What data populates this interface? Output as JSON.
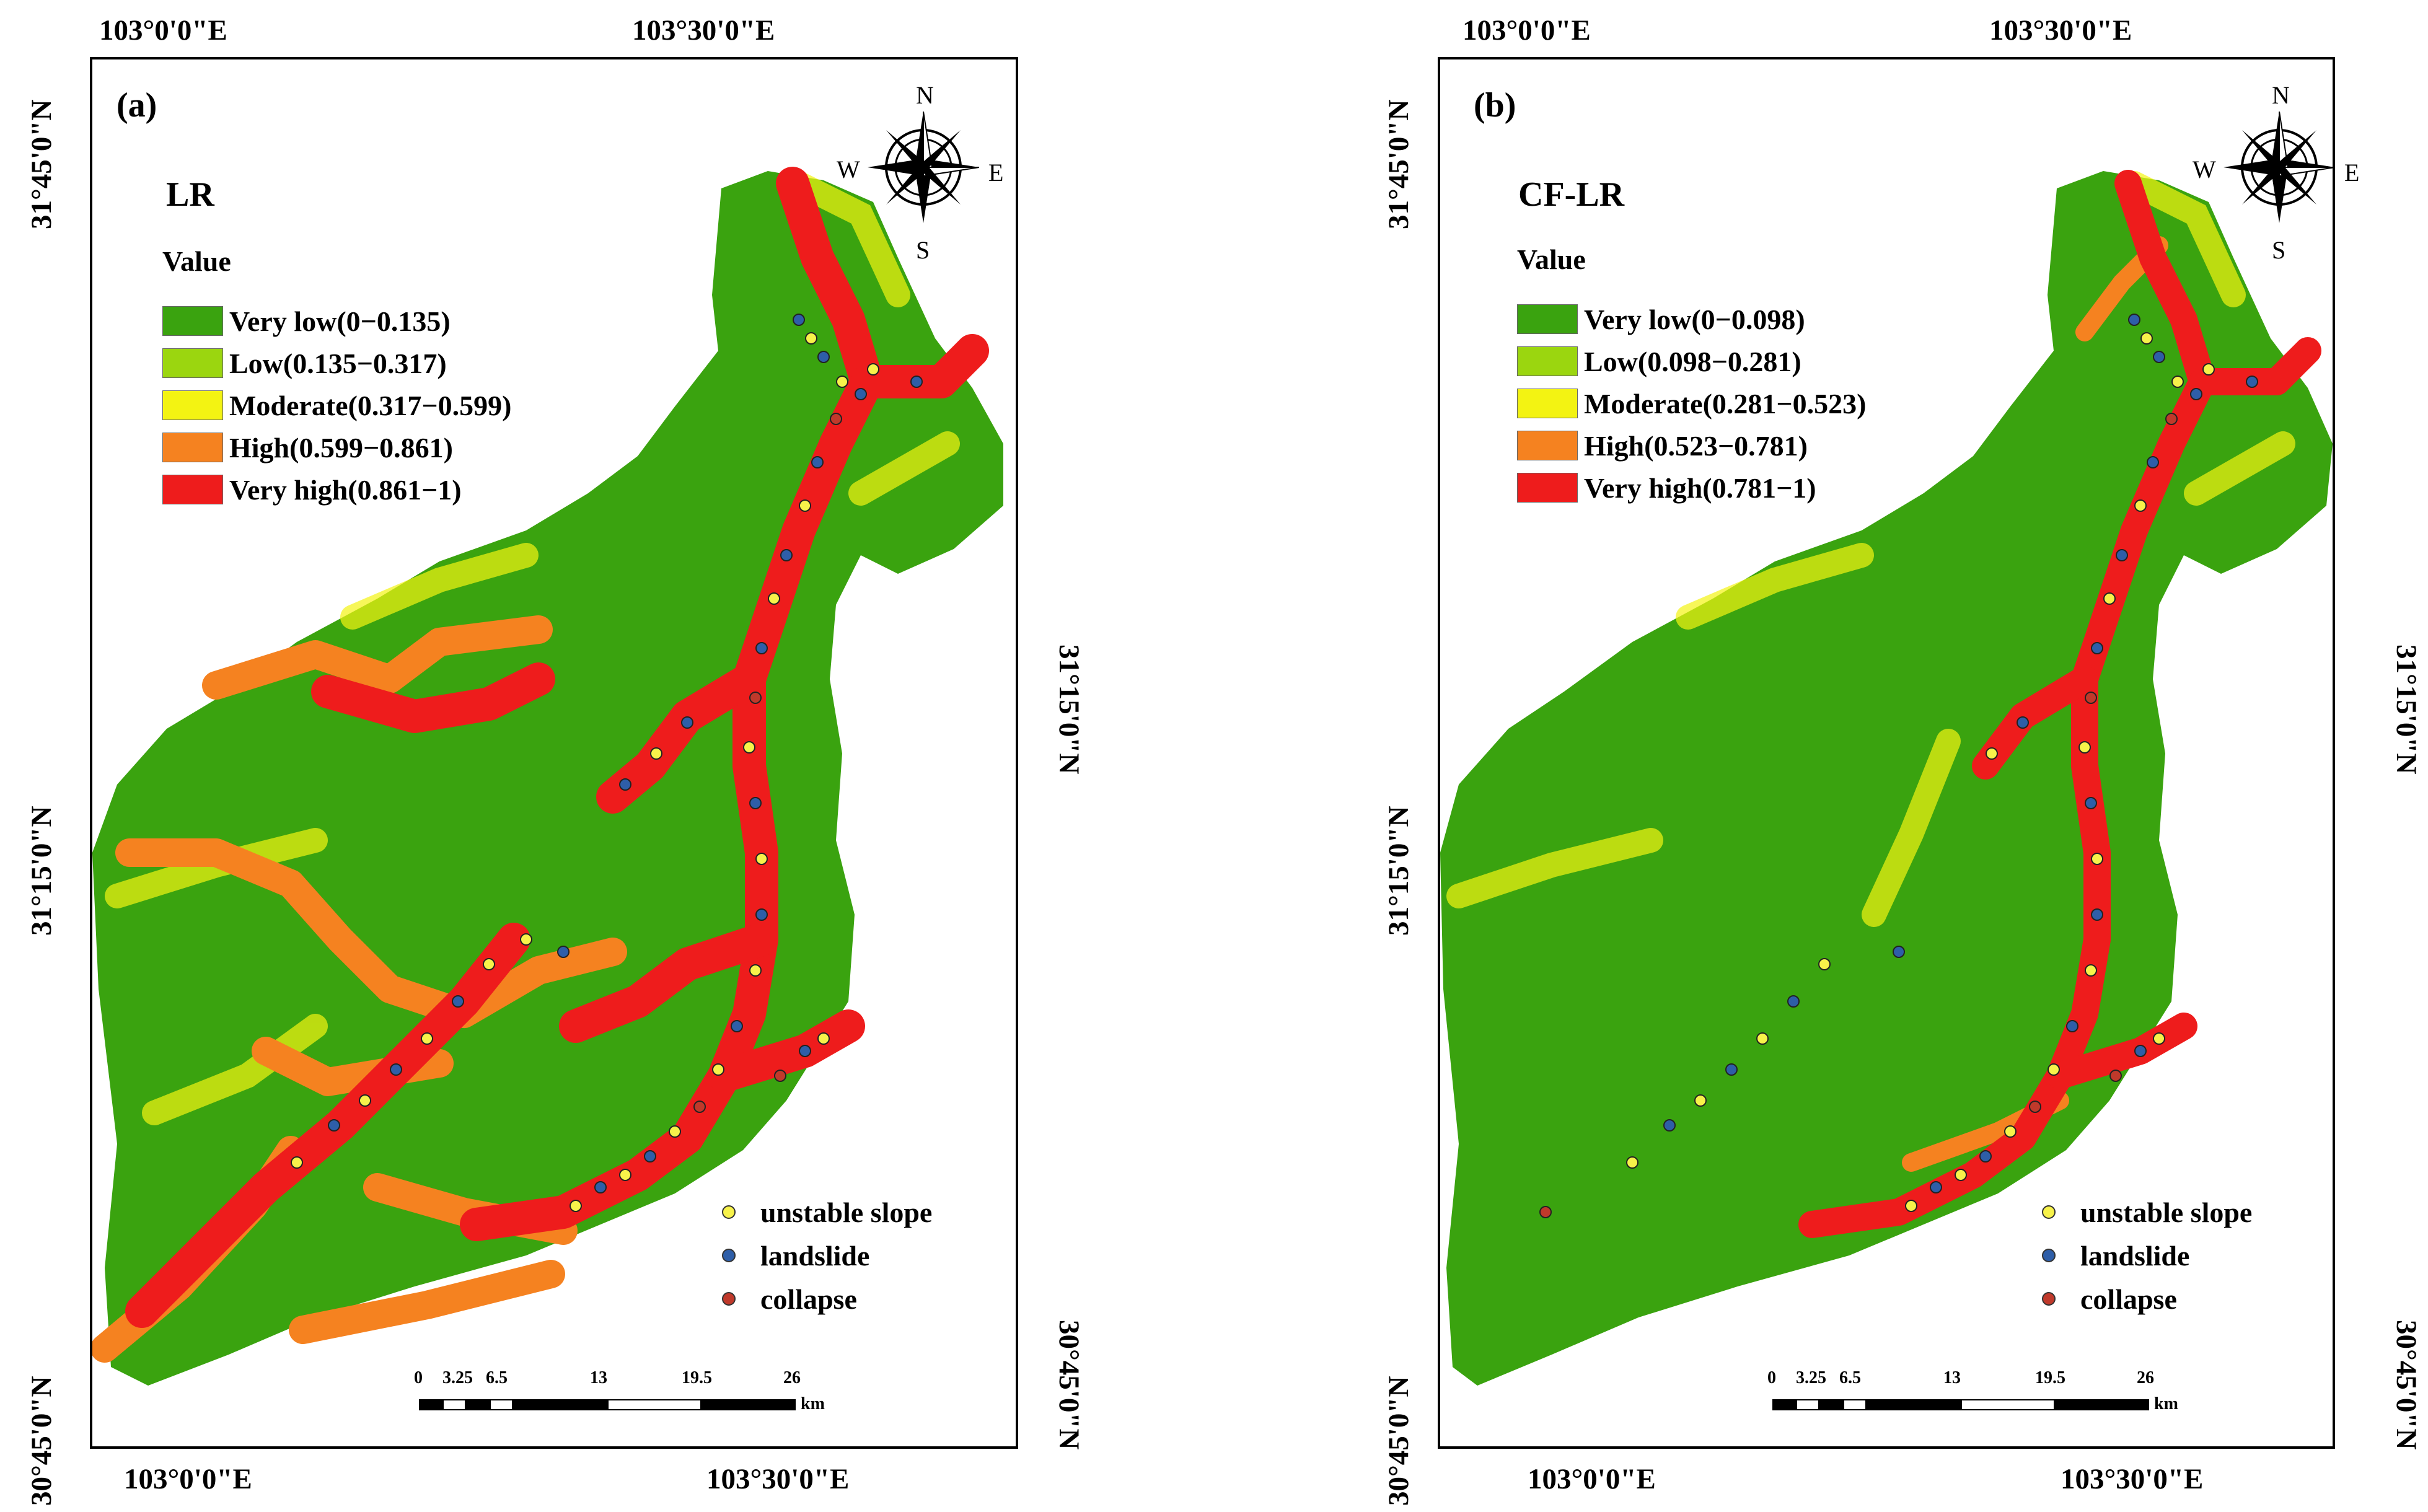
{
  "colors": {
    "very_low": "#3aa30f",
    "low": "#9bd60f",
    "moderate": "#f3f312",
    "high": "#f58220",
    "very_high": "#ee1c1c",
    "unstable_slope": "#f7f24a",
    "landslide": "#2e5ea8",
    "collapse": "#c0392b"
  },
  "panels": [
    {
      "label": "(a)",
      "model": "LR",
      "value_header": "Value",
      "legend": [
        {
          "label": "Very low(0−0.135)",
          "color": "#3aa30f"
        },
        {
          "label": "Low(0.135−0.317)",
          "color": "#9bd60f"
        },
        {
          "label": "Moderate(0.317−0.599)",
          "color": "#f3f312"
        },
        {
          "label": "High(0.599−0.861)",
          "color": "#f58220"
        },
        {
          "label": "Very high(0.861−1)",
          "color": "#ee1c1c"
        }
      ],
      "points_legend": [
        {
          "label": "unstable slope",
          "color": "#f7f24a"
        },
        {
          "label": "landslide",
          "color": "#2e5ea8"
        },
        {
          "label": "collapse",
          "color": "#c0392b"
        }
      ],
      "coords": {
        "top_left": "103°0'0\"E",
        "top_right": "103°30'0\"E",
        "bottom_left": "103°0'0\"E",
        "bottom_right": "103°30'0\"E",
        "left_top": "31°45'0\"N",
        "left_mid": "31°15'0\"N",
        "left_bottom": "30°45'0\"N",
        "right_mid": "31°15'0\"N",
        "right_bottom": "30°45'0\"N"
      },
      "north_arrow": {
        "n": "N",
        "s": "S",
        "e": "E",
        "w": "W"
      },
      "scale": {
        "ticks": [
          "0",
          "3.25",
          "6.5",
          "13",
          "19.5",
          "26"
        ],
        "unit": "km"
      }
    },
    {
      "label": "(b)",
      "model": "CF-LR",
      "value_header": "Value",
      "legend": [
        {
          "label": "Very low(0−0.098)",
          "color": "#3aa30f"
        },
        {
          "label": "Low(0.098−0.281)",
          "color": "#9bd60f"
        },
        {
          "label": "Moderate(0.281−0.523)",
          "color": "#f3f312"
        },
        {
          "label": "High(0.523−0.781)",
          "color": "#f58220"
        },
        {
          "label": "Very high(0.781−1)",
          "color": "#ee1c1c"
        }
      ],
      "points_legend": [
        {
          "label": "unstable slope",
          "color": "#f7f24a"
        },
        {
          "label": "landslide",
          "color": "#2e5ea8"
        },
        {
          "label": "collapse",
          "color": "#c0392b"
        }
      ],
      "coords": {
        "top_left": "103°0'0\"E",
        "top_right": "103°30'0\"E",
        "bottom_left": "103°0'0\"E",
        "bottom_right": "103°30'0\"E",
        "left_top": "31°45'0\"N",
        "left_mid": "31°15'0\"N",
        "left_bottom": "30°45'0\"N",
        "right_mid": "31°15'0\"N",
        "right_bottom": "30°45'0\"N"
      },
      "north_arrow": {
        "n": "N",
        "s": "S",
        "e": "E",
        "w": "W"
      },
      "scale": {
        "ticks": [
          "0",
          "3.25",
          "6.5",
          "13",
          "19.5",
          "26"
        ],
        "unit": "km"
      }
    }
  ]
}
